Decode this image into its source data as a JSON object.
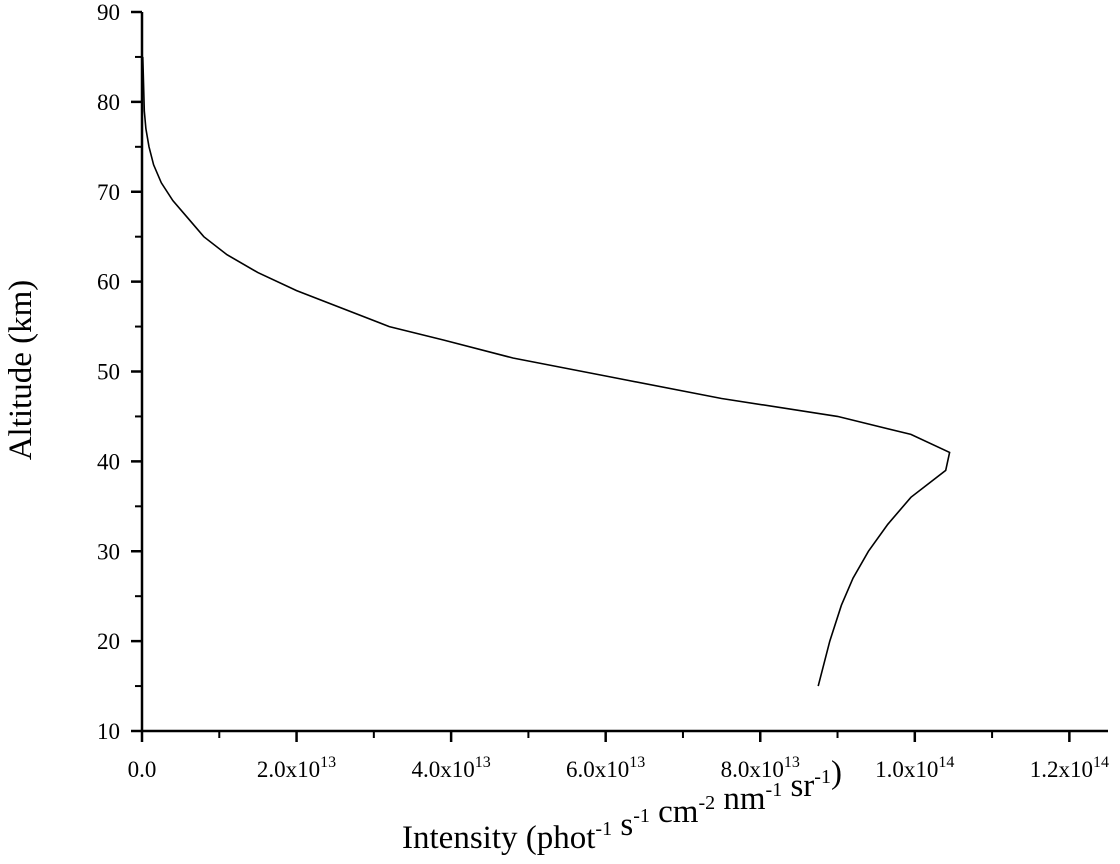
{
  "chart_data": {
    "type": "line",
    "title": "",
    "xlabel": {
      "parts": [
        {
          "t": "Intensity (phot"
        },
        {
          "sup": "-1"
        },
        {
          "t": " s"
        },
        {
          "sup": "-1"
        },
        {
          "t": " cm"
        },
        {
          "sup": "-2"
        },
        {
          "t": " nm"
        },
        {
          "sup": "-1"
        },
        {
          "t": " sr"
        },
        {
          "sup": "-1"
        },
        {
          "t": ")"
        }
      ]
    },
    "ylabel": "Altitude (km)",
    "xlim": [
      0,
      125000000000000.0
    ],
    "ylim": [
      10,
      90
    ],
    "grid": false,
    "x_ticks": [
      {
        "value": 0,
        "mantissa": "0.0",
        "exp": ""
      },
      {
        "value": 20000000000000.0,
        "mantissa": "2.0x10",
        "exp": "13"
      },
      {
        "value": 40000000000000.0,
        "mantissa": "4.0x10",
        "exp": "13"
      },
      {
        "value": 60000000000000.0,
        "mantissa": "6.0x10",
        "exp": "13"
      },
      {
        "value": 80000000000000.0,
        "mantissa": "8.0x10",
        "exp": "13"
      },
      {
        "value": 100000000000000.0,
        "mantissa": "1.0x10",
        "exp": "14"
      },
      {
        "value": 120000000000000.0,
        "mantissa": "1.2x10",
        "exp": "14"
      }
    ],
    "y_ticks": [
      {
        "value": 10,
        "label": "10"
      },
      {
        "value": 20,
        "label": "20"
      },
      {
        "value": 30,
        "label": "30"
      },
      {
        "value": 40,
        "label": "40"
      },
      {
        "value": 50,
        "label": "50"
      },
      {
        "value": 60,
        "label": "60"
      },
      {
        "value": 70,
        "label": "70"
      },
      {
        "value": 80,
        "label": "80"
      },
      {
        "value": 90,
        "label": "90"
      }
    ],
    "series": [
      {
        "x": [
          87500000000000.0,
          89000000000000.0,
          90500000000000.0,
          92000000000000.0,
          94000000000000.0,
          96500000000000.0,
          99500000000000.0,
          104000000000000.0,
          104500000000000.0,
          99500000000000.0,
          90000000000000.0,
          75000000000000.0,
          60000000000000.0,
          48000000000000.0,
          39000000000000.0,
          32000000000000.0,
          20000000000000.0,
          15000000000000.0,
          11000000000000.0,
          8000000000000.0,
          6000000000000.0,
          4000000000000.0,
          2500000000000.0,
          1500000000000.0,
          900000000000.0,
          500000000000.0,
          300000000000.0,
          100000000000.0
        ],
        "y": [
          15,
          20,
          24,
          27,
          30,
          33,
          36,
          39,
          41,
          43,
          45,
          47,
          49.5,
          51.5,
          53.5,
          55,
          59,
          61,
          63,
          65,
          67,
          69,
          71,
          73,
          75,
          77,
          79,
          85
        ]
      }
    ]
  }
}
